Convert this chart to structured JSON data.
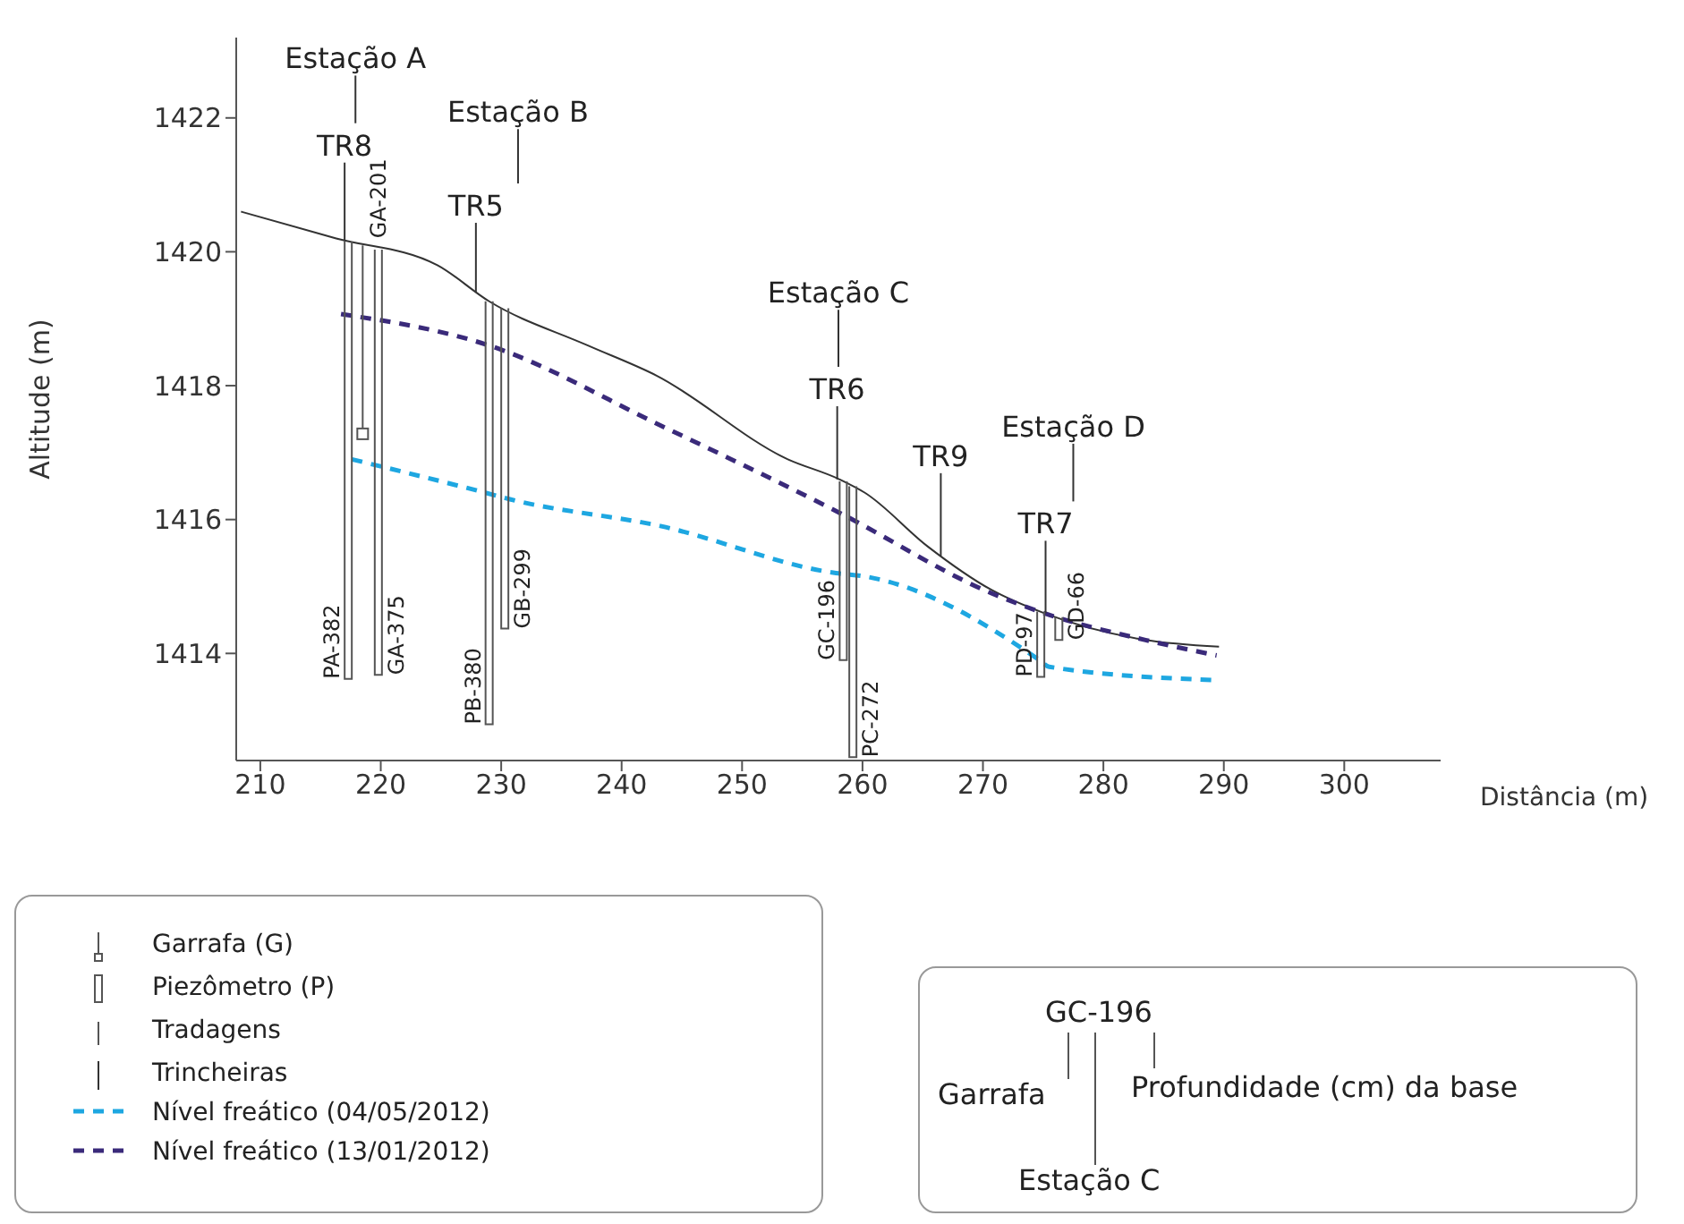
{
  "chart_data": {
    "type": "line",
    "xlabel": "Distância (m)",
    "ylabel": "Altitude (m)",
    "xlim": [
      208,
      308
    ],
    "xticks": [
      210,
      220,
      230,
      240,
      250,
      260,
      270,
      280,
      290,
      300
    ],
    "ylim": [
      1412.4,
      1423.2
    ],
    "yticks": [
      1414,
      1416,
      1418,
      1420,
      1422
    ],
    "grid": false,
    "marker": "none",
    "legend": "bottom left",
    "series": [
      {
        "color": "#333333",
        "line_style": "solid",
        "x": [
          208.4,
          216.3,
          224.7,
          229.0,
          237.2,
          242.9,
          253.8,
          258.1,
          260.2,
          265.4,
          270.7,
          275.1,
          283.5,
          289.6
        ],
        "values": [
          1420.6,
          1420.2,
          1419.8,
          1419.26,
          1418.6,
          1418.15,
          1416.9,
          1416.6,
          1416.4,
          1415.6,
          1414.95,
          1414.6,
          1414.2,
          1414.1
        ]
      },
      {
        "name": "Nível freático (04/05/2012)",
        "color": "#1ea7e1",
        "line_style": "dashed",
        "x": [
          217.6,
          228.7,
          230.8,
          243.3,
          257.8,
          260.2,
          274.7,
          275.5,
          289.4
        ],
        "values": [
          1416.9,
          1416.4,
          1416.3,
          1415.9,
          1415.2,
          1415.15,
          1413.9,
          1413.8,
          1413.6
        ]
      },
      {
        "name": "Nível freático (13/01/2012)",
        "color": "#3a2a7a",
        "line_style": "dashed",
        "x": [
          216.7,
          229.0,
          243.3,
          258.1,
          270.7,
          275.1,
          283.5,
          289.4
        ],
        "values": [
          1419.07,
          1418.6,
          1417.4,
          1416.1,
          1414.9,
          1414.6,
          1414.2,
          1413.97
        ]
      }
    ],
    "annotations": [
      "Estação A",
      {
        "text": "TR8",
        "x": 217.0,
        "y": 1420.16
      },
      "Estação B",
      {
        "text": "TR5",
        "x": 227.9,
        "y": 1419.4
      },
      "Estação C",
      {
        "text": "TR6",
        "x": 257.9,
        "y": 1416.6
      },
      {
        "text": "TR9",
        "x": 266.5,
        "y": 1415.46
      },
      "Estação D",
      {
        "text": "TR7",
        "x": 275.2,
        "y": 1414.6
      },
      "PA-382",
      "GA-201",
      "GA-375",
      "PB-380",
      "GB-299",
      "GC-196",
      "PC-272",
      "PD-97",
      "GD-66",
      "Garrafa (G)",
      "Piezômetro (P)",
      "Tradagens",
      "Trincheiras",
      "GC-196",
      "Garrafa",
      "Estação C",
      "Profundidade (cm) da base"
    ]
  }
}
